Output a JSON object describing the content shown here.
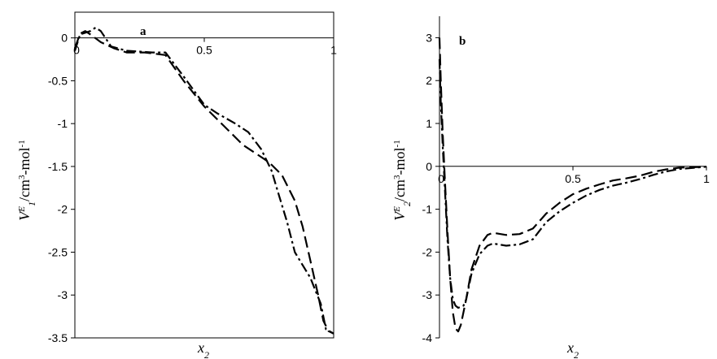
{
  "chart_data": [
    {
      "type": "line",
      "panel_label": "a",
      "xlabel": {
        "main": "x",
        "sub": "2"
      },
      "ylabel": {
        "v": "V",
        "sup1": "E",
        "sub1": "1",
        "mid": "/cm",
        "sup2": "3",
        "tail": "-mol",
        "sup3": "-1"
      },
      "xlim": [
        0,
        1
      ],
      "ylim": [
        -3.5,
        0.3
      ],
      "x_ticks": [
        {
          "v": 0,
          "label": "0"
        },
        {
          "v": 0.5,
          "label": "0.5"
        },
        {
          "v": 1,
          "label": "1"
        }
      ],
      "y_ticks": [
        {
          "v": 0,
          "label": "0"
        },
        {
          "v": -0.5,
          "label": "-0.5"
        },
        {
          "v": -1,
          "label": "-1"
        },
        {
          "v": -1.5,
          "label": "-1.5"
        },
        {
          "v": -2,
          "label": "-2"
        },
        {
          "v": -2.5,
          "label": "-2.5"
        },
        {
          "v": -3,
          "label": "-3"
        },
        {
          "v": -3.5,
          "label": "-3.5"
        }
      ],
      "series": [
        {
          "dash": "dash",
          "points": [
            [
              0,
              -0.12
            ],
            [
              0.02,
              0.05
            ],
            [
              0.04,
              0.08
            ],
            [
              0.06,
              0.04
            ],
            [
              0.1,
              -0.05
            ],
            [
              0.15,
              -0.12
            ],
            [
              0.2,
              -0.17
            ],
            [
              0.27,
              -0.17
            ],
            [
              0.35,
              -0.2
            ],
            [
              0.42,
              -0.5
            ],
            [
              0.5,
              -0.8
            ],
            [
              0.55,
              -0.95
            ],
            [
              0.6,
              -1.1
            ],
            [
              0.65,
              -1.25
            ],
            [
              0.7,
              -1.35
            ],
            [
              0.75,
              -1.45
            ],
            [
              0.8,
              -1.6
            ],
            [
              0.85,
              -1.9
            ],
            [
              0.88,
              -2.2
            ],
            [
              0.91,
              -2.6
            ],
            [
              0.94,
              -3.0
            ],
            [
              0.96,
              -3.3
            ],
            [
              0.98,
              -3.42
            ],
            [
              1.0,
              -3.45
            ]
          ]
        },
        {
          "dash": "dashdot",
          "points": [
            [
              0,
              -0.15
            ],
            [
              0.02,
              0.04
            ],
            [
              0.04,
              0.06
            ],
            [
              0.06,
              0.08
            ],
            [
              0.08,
              0.12
            ],
            [
              0.1,
              0.08
            ],
            [
              0.14,
              -0.1
            ],
            [
              0.2,
              -0.15
            ],
            [
              0.3,
              -0.17
            ],
            [
              0.35,
              -0.17
            ],
            [
              0.42,
              -0.45
            ],
            [
              0.5,
              -0.78
            ],
            [
              0.55,
              -0.88
            ],
            [
              0.62,
              -1.0
            ],
            [
              0.67,
              -1.1
            ],
            [
              0.72,
              -1.3
            ],
            [
              0.76,
              -1.55
            ],
            [
              0.79,
              -1.85
            ],
            [
              0.82,
              -2.15
            ],
            [
              0.85,
              -2.5
            ],
            [
              0.88,
              -2.65
            ],
            [
              0.91,
              -2.8
            ],
            [
              0.93,
              -2.95
            ],
            [
              0.95,
              -3.1
            ],
            [
              0.97,
              -3.4
            ],
            [
              1.0,
              -3.45
            ]
          ]
        }
      ]
    },
    {
      "type": "line",
      "panel_label": "b",
      "xlabel": {
        "main": "x",
        "sub": "2"
      },
      "ylabel": {
        "v": "V",
        "sup1": "E",
        "sub1": "2",
        "mid": "/cm",
        "sup2": "3",
        "tail": "-mol",
        "sup3": "-1"
      },
      "xlim": [
        0,
        1
      ],
      "ylim": [
        -4,
        3.5
      ],
      "x_ticks": [
        {
          "v": 0,
          "label": "0"
        },
        {
          "v": 0.5,
          "label": "0.5"
        },
        {
          "v": 1,
          "label": "1"
        }
      ],
      "y_ticks": [
        {
          "v": 3,
          "label": "3"
        },
        {
          "v": 2,
          "label": "2"
        },
        {
          "v": 1,
          "label": "1"
        },
        {
          "v": 0,
          "label": "0"
        },
        {
          "v": -1,
          "label": "-1"
        },
        {
          "v": -2,
          "label": "-2"
        },
        {
          "v": -3,
          "label": "-3"
        },
        {
          "v": -4,
          "label": "-4"
        }
      ],
      "series": [
        {
          "dash": "dash",
          "points": [
            [
              0,
              3.0
            ],
            [
              0.005,
              2.0
            ],
            [
              0.012,
              0.8
            ],
            [
              0.02,
              -0.3
            ],
            [
              0.03,
              -1.5
            ],
            [
              0.04,
              -2.6
            ],
            [
              0.05,
              -3.4
            ],
            [
              0.06,
              -3.78
            ],
            [
              0.07,
              -3.85
            ],
            [
              0.08,
              -3.7
            ],
            [
              0.1,
              -3.1
            ],
            [
              0.12,
              -2.4
            ],
            [
              0.15,
              -1.85
            ],
            [
              0.18,
              -1.6
            ],
            [
              0.2,
              -1.55
            ],
            [
              0.25,
              -1.6
            ],
            [
              0.3,
              -1.58
            ],
            [
              0.35,
              -1.45
            ],
            [
              0.4,
              -1.1
            ],
            [
              0.45,
              -0.85
            ],
            [
              0.5,
              -0.65
            ],
            [
              0.55,
              -0.52
            ],
            [
              0.6,
              -0.42
            ],
            [
              0.65,
              -0.33
            ],
            [
              0.7,
              -0.28
            ],
            [
              0.75,
              -0.22
            ],
            [
              0.8,
              -0.13
            ],
            [
              0.85,
              -0.07
            ],
            [
              0.9,
              -0.03
            ],
            [
              1.0,
              -0.01
            ]
          ]
        },
        {
          "dash": "dashdot",
          "points": [
            [
              0,
              2.5
            ],
            [
              0.005,
              1.5
            ],
            [
              0.012,
              0.5
            ],
            [
              0.02,
              -0.5
            ],
            [
              0.03,
              -1.7
            ],
            [
              0.04,
              -2.6
            ],
            [
              0.05,
              -3.1
            ],
            [
              0.06,
              -3.25
            ],
            [
              0.07,
              -3.3
            ],
            [
              0.09,
              -3.25
            ],
            [
              0.1,
              -3.1
            ],
            [
              0.12,
              -2.5
            ],
            [
              0.15,
              -2.05
            ],
            [
              0.18,
              -1.85
            ],
            [
              0.2,
              -1.8
            ],
            [
              0.25,
              -1.85
            ],
            [
              0.3,
              -1.82
            ],
            [
              0.35,
              -1.7
            ],
            [
              0.4,
              -1.3
            ],
            [
              0.45,
              -1.05
            ],
            [
              0.5,
              -0.85
            ],
            [
              0.55,
              -0.68
            ],
            [
              0.6,
              -0.55
            ],
            [
              0.65,
              -0.45
            ],
            [
              0.7,
              -0.38
            ],
            [
              0.75,
              -0.3
            ],
            [
              0.8,
              -0.2
            ],
            [
              0.85,
              -0.12
            ],
            [
              0.9,
              -0.06
            ],
            [
              1.0,
              -0.01
            ]
          ]
        }
      ]
    }
  ]
}
